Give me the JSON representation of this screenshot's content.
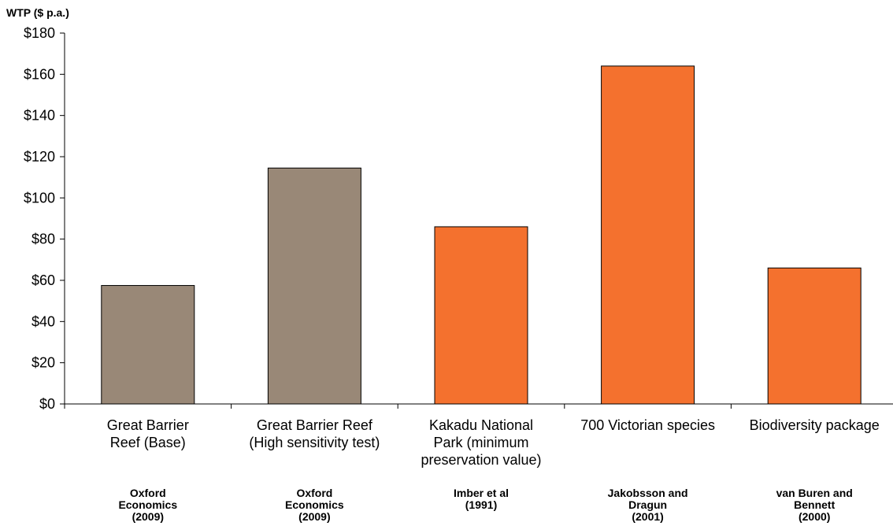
{
  "chart_data": {
    "type": "bar",
    "ylabel": "WTP ($ p.a.)",
    "ylim": [
      0,
      180
    ],
    "yticks": [
      "$0",
      "$20",
      "$40",
      "$60",
      "$80",
      "$100",
      "$120",
      "$140",
      "$160",
      "$180"
    ],
    "ytick_values": [
      0,
      20,
      40,
      60,
      80,
      100,
      120,
      140,
      160,
      180
    ],
    "categories": [
      "Great Barrier\nReef (Base)",
      "Great Barrier Reef\n(High sensitivity test)",
      "Kakadu National\nPark (minimum\npreservation value)",
      "700 Victorian species",
      "Biodiversity package"
    ],
    "sources": [
      "Oxford\nEconomics\n(2009)",
      "Oxford\nEconomics\n(2009)",
      "Imber et al\n(1991)",
      "Jakobsson and\nDragun\n(2001)",
      "van Buren and\nBennett\n(2000)"
    ],
    "values": [
      57.5,
      114.5,
      86,
      164,
      66
    ],
    "colors": [
      "#998877",
      "#998877",
      "#F4712E",
      "#F4712E",
      "#F4712E"
    ],
    "grid": false,
    "legend": "none"
  }
}
